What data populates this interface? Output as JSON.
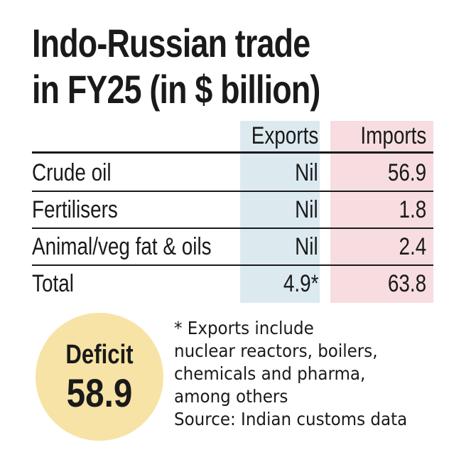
{
  "header": {
    "title_lines": [
      "Indo-Russian trade",
      "in FY25 (in $ billion)"
    ]
  },
  "table": {
    "columns": [
      "Exports",
      "Imports"
    ],
    "rows": [
      [
        "Crude oil",
        "Nil",
        "56.9"
      ],
      [
        "Fertilisers",
        "Nil",
        "1.8"
      ],
      [
        "Animal/veg fat & oils",
        "Nil",
        "2.4"
      ],
      [
        "Total",
        "4.9*",
        "63.8"
      ]
    ]
  },
  "deficit": {
    "label": "Deficit",
    "value": "58.9"
  },
  "note": {
    "lines": [
      "* Exports include",
      "nuclear reactors, boilers,",
      "chemicals and pharma,",
      "among others",
      "Source: Indian customs data"
    ]
  }
}
